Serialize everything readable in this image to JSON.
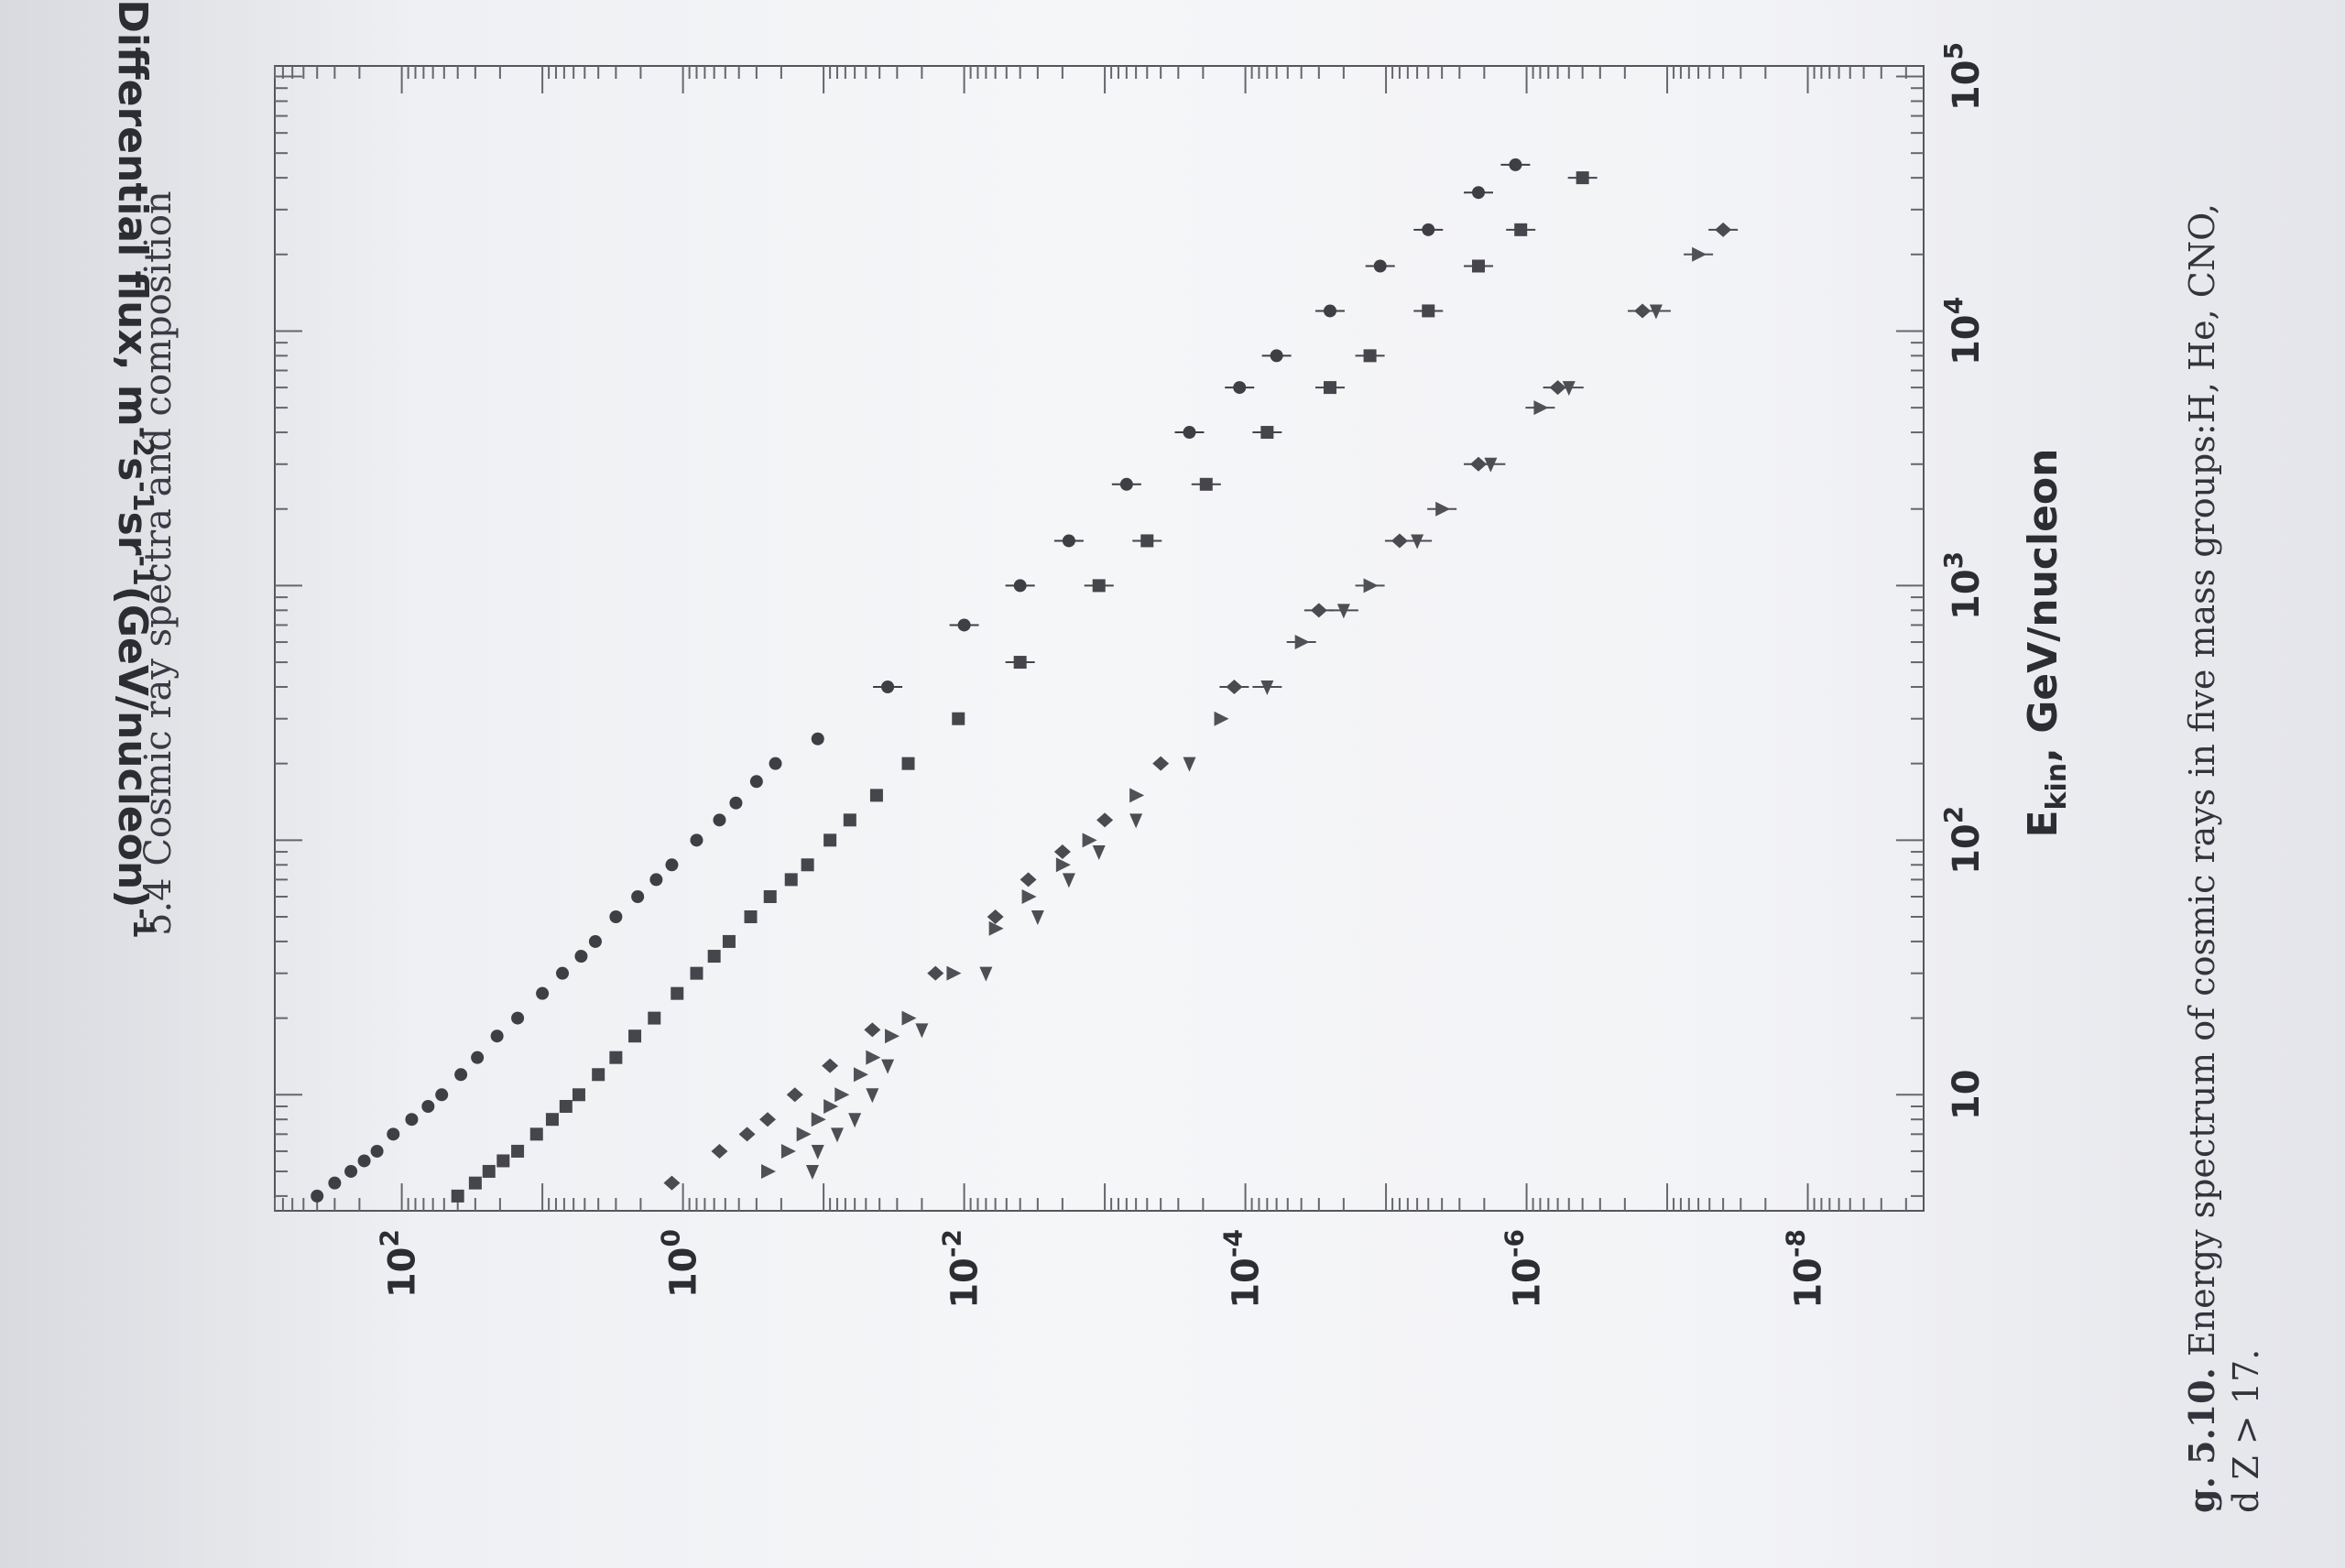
{
  "page_header": "5.4 Cosmic ray spectra and composition",
  "caption": {
    "label": "g. 5.10.",
    "text": "Energy spectrum of cosmic rays in five mass groups:H, He, CNO,",
    "line2": "d Z > 17."
  },
  "chart_data": {
    "type": "scatter",
    "xlabel": {
      "main": "E",
      "sub": "kin",
      "rest": ", GeV/nucleon"
    },
    "ylabel": {
      "parts": [
        "Differential flux,  m",
        "-2",
        "s",
        "-1",
        "sr",
        "-1",
        "(GeV/nucleon)",
        "-1"
      ]
    },
    "x_scale": "log",
    "y_scale": "log",
    "xlim": [
      3.5,
      110000
    ],
    "ylim": [
      1.5e-09,
      800
    ],
    "x_ticks": [
      {
        "value": 10,
        "base": "10",
        "exp": ""
      },
      {
        "value": 100,
        "base": "10",
        "exp": "2"
      },
      {
        "value": 1000,
        "base": "10",
        "exp": "3"
      },
      {
        "value": 10000,
        "base": "10",
        "exp": "4"
      },
      {
        "value": 100000,
        "base": "10",
        "exp": "5"
      }
    ],
    "y_ticks": [
      {
        "value": 100,
        "base": "10",
        "exp": "2"
      },
      {
        "value": 1,
        "base": "10",
        "exp": "0"
      },
      {
        "value": 0.01,
        "base": "10",
        "exp": "-2"
      },
      {
        "value": 0.0001,
        "base": "10",
        "exp": "-4"
      },
      {
        "value": 1e-06,
        "base": "10",
        "exp": "-6"
      },
      {
        "value": 1e-08,
        "base": "10",
        "exp": "-8"
      }
    ],
    "grid": false,
    "series": [
      {
        "marker": "circle",
        "color": "#3e3e44",
        "points": [
          [
            4,
            400
          ],
          [
            4.5,
            300
          ],
          [
            5,
            230
          ],
          [
            5.5,
            185
          ],
          [
            6,
            150
          ],
          [
            7,
            115
          ],
          [
            8,
            85
          ],
          [
            9,
            65
          ],
          [
            10,
            52
          ],
          [
            12,
            38
          ],
          [
            14,
            29
          ],
          [
            17,
            21
          ],
          [
            20,
            15
          ],
          [
            25,
            10
          ],
          [
            30,
            7.2
          ],
          [
            35,
            5.3
          ],
          [
            40,
            4.2
          ],
          [
            50,
            3
          ],
          [
            60,
            2.1
          ],
          [
            70,
            1.55
          ],
          [
            80,
            1.2
          ],
          [
            100,
            0.8
          ],
          [
            120,
            0.55
          ],
          [
            140,
            0.42
          ],
          [
            170,
            0.3
          ],
          [
            200,
            0.22
          ],
          [
            250,
            0.11
          ],
          [
            400,
            0.035
          ],
          [
            700,
            0.01
          ],
          [
            1000,
            0.004
          ],
          [
            1500,
            0.0018
          ],
          [
            2500,
            0.0007
          ],
          [
            4000,
            0.00025
          ],
          [
            6000,
            0.00011
          ],
          [
            8000,
            6e-05
          ],
          [
            12000,
            2.5e-05
          ],
          [
            18000,
            1.1e-05
          ],
          [
            25000,
            5e-06
          ],
          [
            35000,
            2.2e-06
          ],
          [
            45000,
            1.2e-06
          ]
        ]
      },
      {
        "marker": "square",
        "color": "#45454b",
        "points": [
          [
            4,
            40
          ],
          [
            4.5,
            30
          ],
          [
            5,
            24
          ],
          [
            5.5,
            19
          ],
          [
            6,
            15
          ],
          [
            7,
            11
          ],
          [
            8,
            8.5
          ],
          [
            9,
            6.8
          ],
          [
            10,
            5.5
          ],
          [
            12,
            4
          ],
          [
            14,
            3
          ],
          [
            17,
            2.2
          ],
          [
            20,
            1.6
          ],
          [
            25,
            1.1
          ],
          [
            30,
            0.8
          ],
          [
            35,
            0.6
          ],
          [
            40,
            0.47
          ],
          [
            50,
            0.33
          ],
          [
            60,
            0.24
          ],
          [
            70,
            0.17
          ],
          [
            80,
            0.13
          ],
          [
            100,
            0.09
          ],
          [
            120,
            0.065
          ],
          [
            150,
            0.042
          ],
          [
            200,
            0.025
          ],
          [
            300,
            0.011
          ],
          [
            500,
            0.004
          ],
          [
            1000,
            0.0011
          ],
          [
            1500,
            0.0005
          ],
          [
            2500,
            0.00019
          ],
          [
            4000,
            7e-05
          ],
          [
            6000,
            2.5e-05
          ],
          [
            8000,
            1.3e-05
          ],
          [
            12000,
            5e-06
          ],
          [
            18000,
            2.2e-06
          ],
          [
            25000,
            1.1e-06
          ],
          [
            40000,
            4e-07
          ]
        ]
      },
      {
        "marker": "diamond",
        "color": "#4a4a50",
        "points": [
          [
            4.5,
            1.2
          ],
          [
            6,
            0.55
          ],
          [
            7,
            0.35
          ],
          [
            8,
            0.25
          ],
          [
            10,
            0.16
          ],
          [
            13,
            0.09
          ],
          [
            18,
            0.045
          ],
          [
            30,
            0.016
          ],
          [
            50,
            0.006
          ],
          [
            70,
            0.0035
          ],
          [
            90,
            0.002
          ],
          [
            120,
            0.001
          ],
          [
            200,
            0.0004
          ],
          [
            400,
            0.00012
          ],
          [
            800,
            3e-05
          ],
          [
            1500,
            8e-06
          ],
          [
            3000,
            2.2e-06
          ],
          [
            6000,
            6e-07
          ],
          [
            12000,
            1.5e-07
          ],
          [
            25000,
            4e-08
          ]
        ]
      },
      {
        "marker": "triangle-left",
        "color": "#4d4d53",
        "points": [
          [
            5,
            0.12
          ],
          [
            6,
            0.11
          ],
          [
            7,
            0.08
          ],
          [
            8,
            0.06
          ],
          [
            10,
            0.045
          ],
          [
            13,
            0.035
          ],
          [
            18,
            0.02
          ],
          [
            30,
            0.007
          ],
          [
            50,
            0.003
          ],
          [
            70,
            0.0018
          ],
          [
            90,
            0.0011
          ],
          [
            120,
            0.0006
          ],
          [
            200,
            0.00025
          ],
          [
            400,
            7e-05
          ],
          [
            800,
            2e-05
          ],
          [
            1500,
            6e-06
          ],
          [
            3000,
            1.8e-06
          ],
          [
            6000,
            5e-07
          ],
          [
            12000,
            1.2e-07
          ]
        ]
      },
      {
        "marker": "triangle-down",
        "color": "#505056",
        "points": [
          [
            5,
            0.25
          ],
          [
            6,
            0.18
          ],
          [
            7,
            0.14
          ],
          [
            8,
            0.11
          ],
          [
            9,
            0.09
          ],
          [
            10,
            0.075
          ],
          [
            12,
            0.055
          ],
          [
            14,
            0.045
          ],
          [
            17,
            0.033
          ],
          [
            20,
            0.025
          ],
          [
            30,
            0.012
          ],
          [
            45,
            0.006
          ],
          [
            60,
            0.0035
          ],
          [
            80,
            0.002
          ],
          [
            100,
            0.0013
          ],
          [
            150,
            0.0006
          ],
          [
            300,
            0.00015
          ],
          [
            600,
            4e-05
          ],
          [
            1000,
            1.3e-05
          ],
          [
            2000,
            4e-06
          ],
          [
            5000,
            8e-07
          ],
          [
            20000,
            6e-08
          ]
        ]
      }
    ]
  }
}
